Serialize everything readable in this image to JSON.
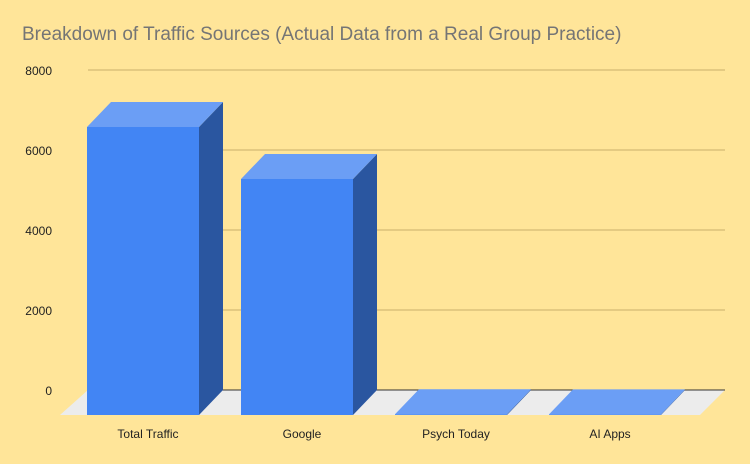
{
  "chart_data": {
    "type": "bar",
    "style": "3d",
    "title": "Breakdown of Traffic Sources (Actual Data from a Real Group Practice)",
    "categories": [
      "Total Traffic",
      "Google",
      "Psych Today",
      "AI Apps"
    ],
    "values": [
      7200,
      5900,
      20,
      15
    ],
    "xlabel": "",
    "ylabel": "",
    "ylim": [
      0,
      8000
    ],
    "yticks": [
      0,
      2000,
      4000,
      6000,
      8000
    ],
    "grid": true,
    "legend": "none",
    "colors": {
      "bar_front": "#4285f4",
      "bar_top": "#6b9ef5",
      "bar_side": "#2a56a0",
      "grid": "#c9b06a",
      "floor": "#ececec",
      "background": "#ffe599"
    }
  }
}
